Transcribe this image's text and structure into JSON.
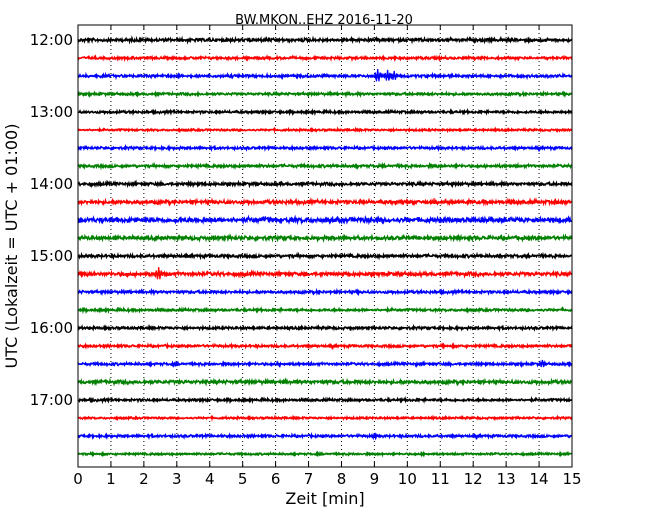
{
  "chart_data": {
    "type": "line",
    "title": "BW.MKON..EHZ 2016-11-20",
    "xlabel": "Zeit  [min]",
    "ylabel": "UTC (Lokalzeit = UTC + 01:00)",
    "xlim": [
      0,
      15
    ],
    "x_ticks": [
      0,
      1,
      2,
      3,
      4,
      5,
      6,
      7,
      8,
      9,
      10,
      11,
      12,
      13,
      14,
      15
    ],
    "x_tick_labels": [
      "0",
      "1",
      "2",
      "3",
      "4",
      "5",
      "6",
      "7",
      "8",
      "9",
      "10",
      "11",
      "12",
      "13",
      "14",
      "15"
    ],
    "y_tick_labels": [
      "12:00",
      "13:00",
      "14:00",
      "15:00",
      "16:00",
      "17:00"
    ],
    "grid": "vertical dotted",
    "trace_colors": [
      "#000000",
      "#ff0000",
      "#0000ff",
      "#008000"
    ],
    "traces": [
      {
        "start": "12:00",
        "amplitude": 1.3,
        "events": []
      },
      {
        "start": "12:15",
        "amplitude": 1.0,
        "events": []
      },
      {
        "start": "12:30",
        "amplitude": 1.1,
        "events": [
          {
            "x": 9.1,
            "amp": 7
          },
          {
            "x": 9.4,
            "amp": 6
          },
          {
            "x": 9.6,
            "amp": 5
          }
        ]
      },
      {
        "start": "12:45",
        "amplitude": 1.0,
        "events": []
      },
      {
        "start": "13:00",
        "amplitude": 1.0,
        "events": []
      },
      {
        "start": "13:15",
        "amplitude": 0.8,
        "events": []
      },
      {
        "start": "13:30",
        "amplitude": 1.0,
        "events": []
      },
      {
        "start": "13:45",
        "amplitude": 1.1,
        "events": []
      },
      {
        "start": "14:00",
        "amplitude": 1.2,
        "events": []
      },
      {
        "start": "14:15",
        "amplitude": 1.5,
        "events": []
      },
      {
        "start": "14:30",
        "amplitude": 2.0,
        "events": []
      },
      {
        "start": "14:45",
        "amplitude": 1.5,
        "events": []
      },
      {
        "start": "15:00",
        "amplitude": 1.2,
        "events": []
      },
      {
        "start": "15:15",
        "amplitude": 1.5,
        "events": [
          {
            "x": 2.45,
            "amp": 7
          }
        ]
      },
      {
        "start": "15:30",
        "amplitude": 1.1,
        "events": []
      },
      {
        "start": "15:45",
        "amplitude": 1.0,
        "events": []
      },
      {
        "start": "16:00",
        "amplitude": 1.0,
        "events": []
      },
      {
        "start": "16:15",
        "amplitude": 1.0,
        "events": []
      },
      {
        "start": "16:30",
        "amplitude": 1.0,
        "events": [
          {
            "x": 14.1,
            "amp": 4
          }
        ]
      },
      {
        "start": "16:45",
        "amplitude": 1.4,
        "events": []
      },
      {
        "start": "17:00",
        "amplitude": 1.0,
        "events": []
      },
      {
        "start": "17:15",
        "amplitude": 0.8,
        "events": []
      },
      {
        "start": "17:30",
        "amplitude": 1.0,
        "events": [
          {
            "x": 9.0,
            "amp": 3
          }
        ]
      },
      {
        "start": "17:45",
        "amplitude": 0.8,
        "events": []
      }
    ]
  }
}
